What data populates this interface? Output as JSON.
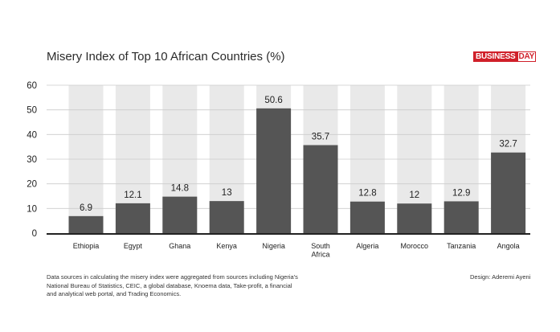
{
  "title": "Misery Index of Top 10 African Countries (%)",
  "logo": {
    "business": "BUSINESS",
    "day": "DAY"
  },
  "source_note": "Data sources in calculating the misery index were aggregated from sources including Nigeria's National Bureau of Statistics, CEIC, a global database, Knoema data, Take-profit, a financial and analytical web portal, and Trading Economics.",
  "design_credit": "Design: Aderemi Ayeni",
  "colors": {
    "bar": "#555555",
    "track": "#e9e9e9",
    "axis": "#222222",
    "grid": "#cccccc"
  },
  "chart_data": {
    "type": "bar",
    "title": "Misery Index of Top 10 African Countries (%)",
    "categories": [
      "Ethiopia",
      "Egypt",
      "Ghana",
      "Kenya",
      "Nigeria",
      "South Africa",
      "Algeria",
      "Morocco",
      "Tanzania",
      "Angola"
    ],
    "category_lines": [
      [
        "Ethiopia"
      ],
      [
        "Egypt"
      ],
      [
        "Ghana"
      ],
      [
        "Kenya"
      ],
      [
        "Nigeria"
      ],
      [
        "South",
        "Africa"
      ],
      [
        "Algeria"
      ],
      [
        "Morocco"
      ],
      [
        "Tanzania"
      ],
      [
        "Angola"
      ]
    ],
    "values": [
      6.9,
      12.1,
      14.8,
      13,
      50.6,
      35.7,
      12.8,
      12,
      12.9,
      32.7
    ],
    "value_labels": [
      "6.9",
      "12.1",
      "14.8",
      "13",
      "50.6",
      "35.7",
      "12.8",
      "12",
      "12.9",
      "32.7"
    ],
    "ylim": [
      0,
      60
    ],
    "yticks": [
      0,
      10,
      20,
      30,
      40,
      50,
      60
    ],
    "xlabel": "",
    "ylabel": "",
    "grid": true
  }
}
